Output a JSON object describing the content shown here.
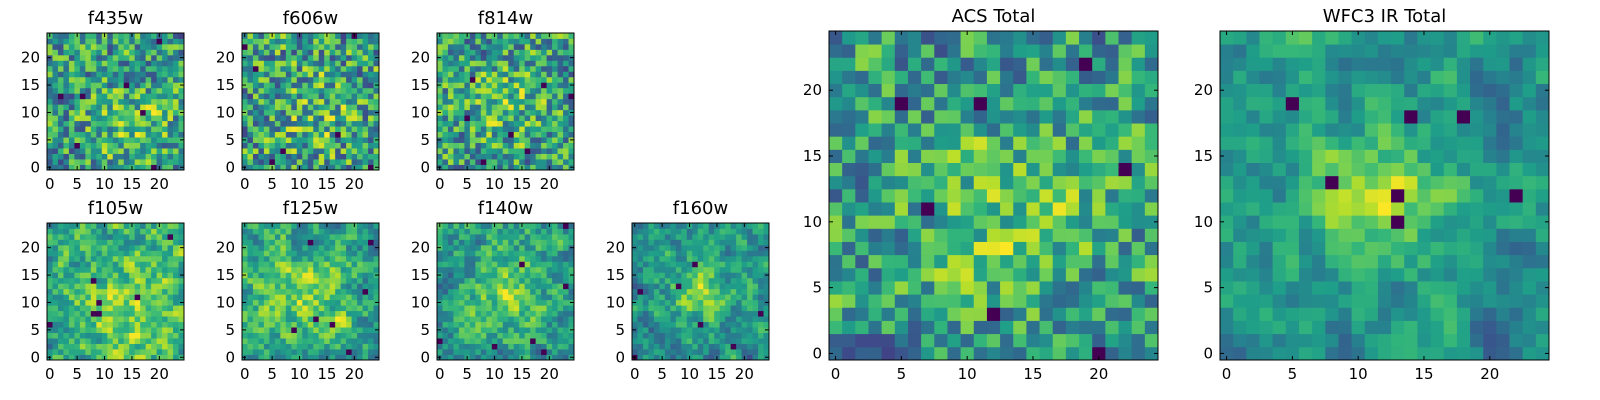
{
  "chart_data": [
    {
      "type": "heatmap",
      "title": "f435w",
      "grid_size": 25,
      "xlim": [
        0,
        24
      ],
      "ylim": [
        0,
        24
      ],
      "xticks": [
        "0",
        "5",
        "10",
        "15",
        "20"
      ],
      "yticks": [
        "0",
        "5",
        "10",
        "15",
        "20"
      ],
      "colormap": "viridis",
      "seed": 11,
      "smooth": 0.15,
      "blob": {
        "center": [
          15,
          8
        ],
        "sigma": 6,
        "amplitude": 0.25
      },
      "grid": false
    },
    {
      "type": "heatmap",
      "title": "f606w",
      "grid_size": 25,
      "xlim": [
        0,
        24
      ],
      "ylim": [
        0,
        24
      ],
      "xticks": [
        "0",
        "5",
        "10",
        "15",
        "20"
      ],
      "yticks": [
        "0",
        "5",
        "10",
        "15",
        "20"
      ],
      "colormap": "viridis",
      "seed": 23,
      "smooth": 0.1,
      "blob": {
        "center": [
          13,
          10
        ],
        "sigma": 6,
        "amplitude": 0.15
      },
      "grid": false
    },
    {
      "type": "heatmap",
      "title": "f814w",
      "grid_size": 25,
      "xlim": [
        0,
        24
      ],
      "ylim": [
        0,
        24
      ],
      "xticks": [
        "0",
        "5",
        "10",
        "15",
        "20"
      ],
      "yticks": [
        "0",
        "5",
        "10",
        "15",
        "20"
      ],
      "colormap": "viridis",
      "seed": 37,
      "smooth": 0.2,
      "blob": {
        "center": [
          12,
          12
        ],
        "sigma": 5,
        "amplitude": 0.2
      },
      "grid": false
    },
    {
      "type": "heatmap",
      "title": "f105w",
      "grid_size": 25,
      "xlim": [
        0,
        24
      ],
      "ylim": [
        0,
        24
      ],
      "xticks": [
        "0",
        "5",
        "10",
        "15",
        "20"
      ],
      "yticks": [
        "0",
        "5",
        "10",
        "15",
        "20"
      ],
      "colormap": "viridis",
      "seed": 41,
      "smooth": 0.6,
      "blob": {
        "center": [
          14,
          9
        ],
        "sigma": 6,
        "amplitude": 0.3
      },
      "grid": false
    },
    {
      "type": "heatmap",
      "title": "f125w",
      "grid_size": 25,
      "xlim": [
        0,
        24
      ],
      "ylim": [
        0,
        24
      ],
      "xticks": [
        "0",
        "5",
        "10",
        "15",
        "20"
      ],
      "yticks": [
        "0",
        "5",
        "10",
        "15",
        "20"
      ],
      "colormap": "viridis",
      "seed": 53,
      "smooth": 0.6,
      "blob": {
        "center": [
          12,
          11
        ],
        "sigma": 6,
        "amplitude": 0.25
      },
      "grid": false
    },
    {
      "type": "heatmap",
      "title": "f140w",
      "grid_size": 25,
      "xlim": [
        0,
        24
      ],
      "ylim": [
        0,
        24
      ],
      "xticks": [
        "0",
        "5",
        "10",
        "15",
        "20"
      ],
      "yticks": [
        "0",
        "5",
        "10",
        "15",
        "20"
      ],
      "colormap": "viridis",
      "seed": 67,
      "smooth": 0.6,
      "blob": {
        "center": [
          12,
          12
        ],
        "sigma": 5,
        "amplitude": 0.3
      },
      "grid": false
    },
    {
      "type": "heatmap",
      "title": "f160w",
      "grid_size": 25,
      "xlim": [
        0,
        24
      ],
      "ylim": [
        0,
        24
      ],
      "xticks": [
        "0",
        "5",
        "10",
        "15",
        "20"
      ],
      "yticks": [
        "0",
        "5",
        "10",
        "15",
        "20"
      ],
      "colormap": "viridis",
      "seed": 79,
      "smooth": 0.6,
      "blob": {
        "center": [
          12,
          12
        ],
        "sigma": 4,
        "amplitude": 0.45
      },
      "grid": false
    },
    {
      "type": "heatmap",
      "title": "ACS Total",
      "grid_size": 25,
      "xlim": [
        0,
        24
      ],
      "ylim": [
        0,
        24
      ],
      "xticks": [
        "0",
        "5",
        "10",
        "15",
        "20"
      ],
      "yticks": [
        "0",
        "5",
        "10",
        "15",
        "20"
      ],
      "colormap": "viridis",
      "seed": 97,
      "smooth": 0.3,
      "blob": {
        "center": [
          13,
          11
        ],
        "sigma": 5,
        "amplitude": 0.25
      },
      "grid": false
    },
    {
      "type": "heatmap",
      "title": "WFC3 IR Total",
      "grid_size": 25,
      "xlim": [
        0,
        24
      ],
      "ylim": [
        0,
        24
      ],
      "xticks": [
        "0",
        "5",
        "10",
        "15",
        "20"
      ],
      "yticks": [
        "0",
        "5",
        "10",
        "15",
        "20"
      ],
      "colormap": "viridis",
      "seed": 131,
      "smooth": 0.7,
      "blob": {
        "center": [
          12,
          12
        ],
        "sigma": 3.5,
        "amplitude": 0.55
      },
      "grid": false
    }
  ]
}
